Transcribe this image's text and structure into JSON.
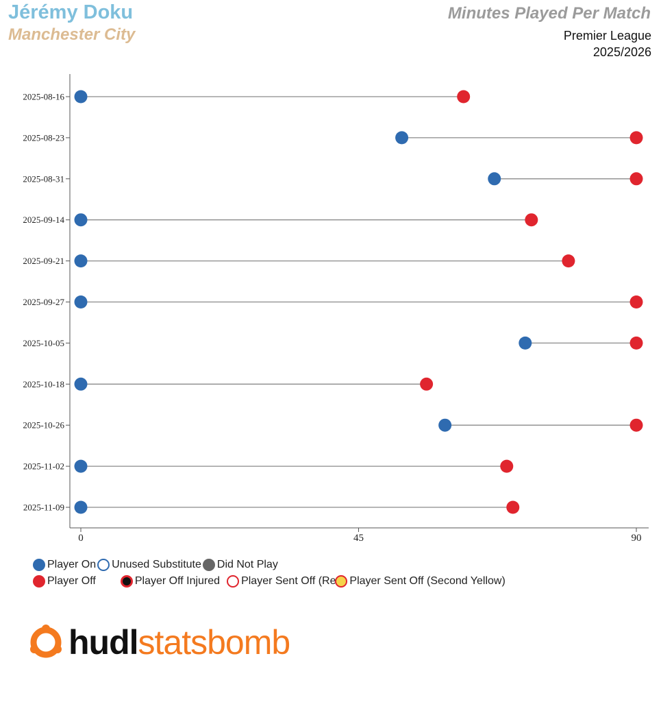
{
  "header": {
    "player": "Jérémy Doku",
    "team": "Manchester City",
    "title": "Minutes Played Per Match",
    "competition": "Premier League",
    "season": "2025/2026"
  },
  "chart_data": {
    "type": "dumbbell",
    "title": "Minutes Played Per Match",
    "xlabel": "",
    "ylabel": "",
    "xlim": [
      0,
      90
    ],
    "xticks": [
      "0",
      "45",
      "90"
    ],
    "categories": [
      "2025-08-16",
      "2025-08-23",
      "2025-08-31",
      "2025-09-14",
      "2025-09-21",
      "2025-09-27",
      "2025-10-05",
      "2025-10-18",
      "2025-10-26",
      "2025-11-02",
      "2025-11-09"
    ],
    "series": [
      {
        "name": "Player On",
        "values": [
          0,
          52,
          67,
          0,
          0,
          0,
          72,
          0,
          59,
          0,
          0
        ]
      },
      {
        "name": "Player Off",
        "values": [
          62,
          90,
          90,
          73,
          79,
          90,
          90,
          56,
          90,
          69,
          70
        ]
      }
    ],
    "colors": {
      "on": "#2f6bb0",
      "off": "#e0252e",
      "line": "#8a8a8a",
      "axis": "#555555"
    }
  },
  "legend": {
    "row1": [
      {
        "key": "on",
        "label": "Player On"
      },
      {
        "key": "unused",
        "label": "Unused Substitute"
      },
      {
        "key": "dnp",
        "label": "Did Not Play"
      }
    ],
    "row2": [
      {
        "key": "off",
        "label": "Player Off"
      },
      {
        "key": "injured",
        "label": "Player Off Injured"
      },
      {
        "key": "red",
        "label": "Player Sent Off (Red"
      },
      {
        "key": "yellow",
        "label": "Player Sent Off (Second Yellow)"
      }
    ]
  },
  "logo": {
    "part1": "hudl",
    "part2": "statsbomb"
  }
}
